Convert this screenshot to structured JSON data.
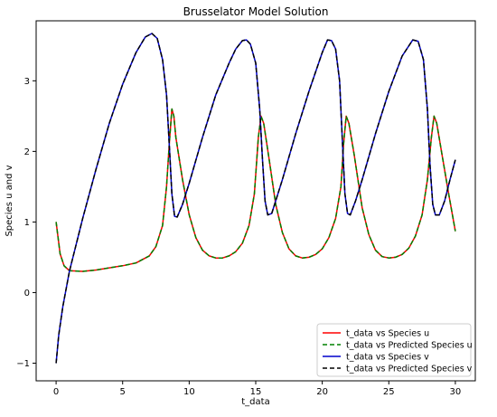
{
  "chart_data": {
    "type": "line",
    "title": "Brusselator Model Solution",
    "xlabel": "t_data",
    "ylabel": "Species u and v",
    "xlim": [
      -1.5,
      31.5
    ],
    "ylim": [
      -1.25,
      3.85
    ],
    "xticks": [
      0,
      5,
      10,
      15,
      20,
      25,
      30
    ],
    "yticks": [
      -1,
      0,
      1,
      2,
      3
    ],
    "grid": false,
    "legend_position": "bottom-right",
    "series": [
      {
        "name": "t_data vs Species u",
        "color": "#ff0000",
        "dash": "solid",
        "points": [
          [
            0,
            1.0
          ],
          [
            0.3,
            0.55
          ],
          [
            0.6,
            0.38
          ],
          [
            1.0,
            0.31
          ],
          [
            2.0,
            0.3
          ],
          [
            3.0,
            0.32
          ],
          [
            4.0,
            0.35
          ],
          [
            5.0,
            0.38
          ],
          [
            6.0,
            0.42
          ],
          [
            7.0,
            0.52
          ],
          [
            7.5,
            0.65
          ],
          [
            8.0,
            0.95
          ],
          [
            8.3,
            1.5
          ],
          [
            8.5,
            2.1
          ],
          [
            8.7,
            2.6
          ],
          [
            8.85,
            2.5
          ],
          [
            9.0,
            2.2
          ],
          [
            9.5,
            1.6
          ],
          [
            10.0,
            1.1
          ],
          [
            10.5,
            0.78
          ],
          [
            11.0,
            0.6
          ],
          [
            11.5,
            0.52
          ],
          [
            12.0,
            0.49
          ],
          [
            12.5,
            0.49
          ],
          [
            13.0,
            0.52
          ],
          [
            13.5,
            0.58
          ],
          [
            14.0,
            0.7
          ],
          [
            14.5,
            0.95
          ],
          [
            14.9,
            1.4
          ],
          [
            15.2,
            2.2
          ],
          [
            15.4,
            2.5
          ],
          [
            15.6,
            2.4
          ],
          [
            16.0,
            1.9
          ],
          [
            16.5,
            1.25
          ],
          [
            17.0,
            0.85
          ],
          [
            17.5,
            0.62
          ],
          [
            18.0,
            0.52
          ],
          [
            18.5,
            0.49
          ],
          [
            19.0,
            0.5
          ],
          [
            19.5,
            0.54
          ],
          [
            20.0,
            0.62
          ],
          [
            20.5,
            0.78
          ],
          [
            21.0,
            1.05
          ],
          [
            21.4,
            1.5
          ],
          [
            21.6,
            2.1
          ],
          [
            21.8,
            2.5
          ],
          [
            22.0,
            2.4
          ],
          [
            22.4,
            1.95
          ],
          [
            23.0,
            1.2
          ],
          [
            23.5,
            0.82
          ],
          [
            24.0,
            0.6
          ],
          [
            24.5,
            0.51
          ],
          [
            25.0,
            0.49
          ],
          [
            25.5,
            0.5
          ],
          [
            26.0,
            0.54
          ],
          [
            26.5,
            0.63
          ],
          [
            27.0,
            0.8
          ],
          [
            27.5,
            1.1
          ],
          [
            27.9,
            1.6
          ],
          [
            28.2,
            2.2
          ],
          [
            28.4,
            2.5
          ],
          [
            28.6,
            2.4
          ],
          [
            29.0,
            1.95
          ],
          [
            29.5,
            1.4
          ],
          [
            30.0,
            0.87
          ]
        ]
      },
      {
        "name": "t_data vs Predicted Species u",
        "color": "#008000",
        "dash": "dashed",
        "points": [
          [
            0,
            1.0
          ],
          [
            0.3,
            0.55
          ],
          [
            0.6,
            0.38
          ],
          [
            1.0,
            0.31
          ],
          [
            2.0,
            0.3
          ],
          [
            3.0,
            0.32
          ],
          [
            4.0,
            0.35
          ],
          [
            5.0,
            0.38
          ],
          [
            6.0,
            0.42
          ],
          [
            7.0,
            0.52
          ],
          [
            7.5,
            0.65
          ],
          [
            8.0,
            0.95
          ],
          [
            8.3,
            1.5
          ],
          [
            8.5,
            2.1
          ],
          [
            8.7,
            2.6
          ],
          [
            8.85,
            2.5
          ],
          [
            9.0,
            2.2
          ],
          [
            9.5,
            1.6
          ],
          [
            10.0,
            1.1
          ],
          [
            10.5,
            0.78
          ],
          [
            11.0,
            0.6
          ],
          [
            11.5,
            0.52
          ],
          [
            12.0,
            0.49
          ],
          [
            12.5,
            0.49
          ],
          [
            13.0,
            0.52
          ],
          [
            13.5,
            0.58
          ],
          [
            14.0,
            0.7
          ],
          [
            14.5,
            0.95
          ],
          [
            14.9,
            1.4
          ],
          [
            15.2,
            2.2
          ],
          [
            15.4,
            2.5
          ],
          [
            15.6,
            2.4
          ],
          [
            16.0,
            1.9
          ],
          [
            16.5,
            1.25
          ],
          [
            17.0,
            0.85
          ],
          [
            17.5,
            0.62
          ],
          [
            18.0,
            0.52
          ],
          [
            18.5,
            0.49
          ],
          [
            19.0,
            0.5
          ],
          [
            19.5,
            0.54
          ],
          [
            20.0,
            0.62
          ],
          [
            20.5,
            0.78
          ],
          [
            21.0,
            1.05
          ],
          [
            21.4,
            1.5
          ],
          [
            21.6,
            2.1
          ],
          [
            21.8,
            2.5
          ],
          [
            22.0,
            2.4
          ],
          [
            22.4,
            1.95
          ],
          [
            23.0,
            1.2
          ],
          [
            23.5,
            0.82
          ],
          [
            24.0,
            0.6
          ],
          [
            24.5,
            0.51
          ],
          [
            25.0,
            0.49
          ],
          [
            25.5,
            0.5
          ],
          [
            26.0,
            0.54
          ],
          [
            26.5,
            0.63
          ],
          [
            27.0,
            0.8
          ],
          [
            27.5,
            1.1
          ],
          [
            27.9,
            1.6
          ],
          [
            28.2,
            2.2
          ],
          [
            28.4,
            2.5
          ],
          [
            28.6,
            2.4
          ],
          [
            29.0,
            1.95
          ],
          [
            29.5,
            1.4
          ],
          [
            30.0,
            0.87
          ]
        ]
      },
      {
        "name": "t_data vs Species v",
        "color": "#0000cc",
        "dash": "solid",
        "points": [
          [
            0,
            -1.0
          ],
          [
            0.2,
            -0.6
          ],
          [
            0.5,
            -0.2
          ],
          [
            1.0,
            0.3
          ],
          [
            2.0,
            1.05
          ],
          [
            3.0,
            1.75
          ],
          [
            4.0,
            2.4
          ],
          [
            5.0,
            2.95
          ],
          [
            6.0,
            3.4
          ],
          [
            6.7,
            3.62
          ],
          [
            7.2,
            3.67
          ],
          [
            7.6,
            3.6
          ],
          [
            8.0,
            3.3
          ],
          [
            8.3,
            2.8
          ],
          [
            8.5,
            2.1
          ],
          [
            8.7,
            1.4
          ],
          [
            8.9,
            1.08
          ],
          [
            9.1,
            1.07
          ],
          [
            9.5,
            1.25
          ],
          [
            10.0,
            1.55
          ],
          [
            11.0,
            2.2
          ],
          [
            12.0,
            2.8
          ],
          [
            13.0,
            3.25
          ],
          [
            13.5,
            3.45
          ],
          [
            14.0,
            3.57
          ],
          [
            14.3,
            3.58
          ],
          [
            14.6,
            3.52
          ],
          [
            15.0,
            3.25
          ],
          [
            15.3,
            2.6
          ],
          [
            15.5,
            1.9
          ],
          [
            15.7,
            1.3
          ],
          [
            15.9,
            1.1
          ],
          [
            16.2,
            1.12
          ],
          [
            17.0,
            1.6
          ],
          [
            18.0,
            2.25
          ],
          [
            19.0,
            2.85
          ],
          [
            20.0,
            3.4
          ],
          [
            20.4,
            3.58
          ],
          [
            20.7,
            3.57
          ],
          [
            21.0,
            3.45
          ],
          [
            21.3,
            3.0
          ],
          [
            21.5,
            2.2
          ],
          [
            21.7,
            1.4
          ],
          [
            21.9,
            1.12
          ],
          [
            22.1,
            1.1
          ],
          [
            22.5,
            1.3
          ],
          [
            23.0,
            1.6
          ],
          [
            24.0,
            2.25
          ],
          [
            25.0,
            2.85
          ],
          [
            26.0,
            3.35
          ],
          [
            26.8,
            3.58
          ],
          [
            27.2,
            3.56
          ],
          [
            27.6,
            3.3
          ],
          [
            27.9,
            2.6
          ],
          [
            28.1,
            1.8
          ],
          [
            28.3,
            1.25
          ],
          [
            28.5,
            1.1
          ],
          [
            28.8,
            1.1
          ],
          [
            29.2,
            1.3
          ],
          [
            29.6,
            1.6
          ],
          [
            30.0,
            1.88
          ]
        ]
      },
      {
        "name": "t_data vs Predicted Species v",
        "color": "#000000",
        "dash": "dashed",
        "points": [
          [
            0,
            -1.0
          ],
          [
            0.2,
            -0.6
          ],
          [
            0.5,
            -0.2
          ],
          [
            1.0,
            0.3
          ],
          [
            2.0,
            1.05
          ],
          [
            3.0,
            1.75
          ],
          [
            4.0,
            2.4
          ],
          [
            5.0,
            2.95
          ],
          [
            6.0,
            3.4
          ],
          [
            6.7,
            3.62
          ],
          [
            7.2,
            3.67
          ],
          [
            7.6,
            3.6
          ],
          [
            8.0,
            3.3
          ],
          [
            8.3,
            2.8
          ],
          [
            8.5,
            2.1
          ],
          [
            8.7,
            1.4
          ],
          [
            8.9,
            1.08
          ],
          [
            9.1,
            1.07
          ],
          [
            9.5,
            1.25
          ],
          [
            10.0,
            1.55
          ],
          [
            11.0,
            2.2
          ],
          [
            12.0,
            2.8
          ],
          [
            13.0,
            3.25
          ],
          [
            13.5,
            3.45
          ],
          [
            14.0,
            3.57
          ],
          [
            14.3,
            3.58
          ],
          [
            14.6,
            3.52
          ],
          [
            15.0,
            3.25
          ],
          [
            15.3,
            2.6
          ],
          [
            15.5,
            1.9
          ],
          [
            15.7,
            1.3
          ],
          [
            15.9,
            1.1
          ],
          [
            16.2,
            1.12
          ],
          [
            17.0,
            1.6
          ],
          [
            18.0,
            2.25
          ],
          [
            19.0,
            2.85
          ],
          [
            20.0,
            3.4
          ],
          [
            20.4,
            3.58
          ],
          [
            20.7,
            3.57
          ],
          [
            21.0,
            3.45
          ],
          [
            21.3,
            3.0
          ],
          [
            21.5,
            2.2
          ],
          [
            21.7,
            1.4
          ],
          [
            21.9,
            1.12
          ],
          [
            22.1,
            1.1
          ],
          [
            22.5,
            1.3
          ],
          [
            23.0,
            1.6
          ],
          [
            24.0,
            2.25
          ],
          [
            25.0,
            2.85
          ],
          [
            26.0,
            3.35
          ],
          [
            26.8,
            3.58
          ],
          [
            27.2,
            3.56
          ],
          [
            27.6,
            3.3
          ],
          [
            27.9,
            2.6
          ],
          [
            28.1,
            1.8
          ],
          [
            28.3,
            1.25
          ],
          [
            28.5,
            1.1
          ],
          [
            28.8,
            1.1
          ],
          [
            29.2,
            1.3
          ],
          [
            29.6,
            1.6
          ],
          [
            30.0,
            1.88
          ]
        ]
      }
    ]
  }
}
